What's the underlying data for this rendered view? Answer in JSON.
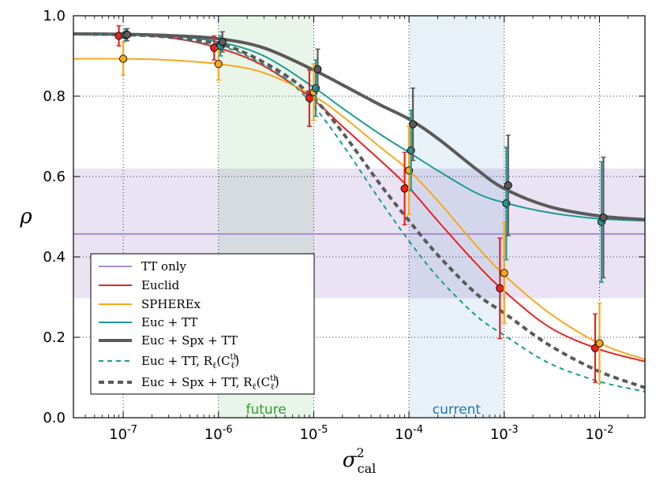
{
  "chart_data": {
    "type": "line",
    "xscale": "log",
    "xlim": [
      3e-08,
      0.03
    ],
    "ylim": [
      0.0,
      1.0
    ],
    "ylabel": "ρ",
    "xlabel_base": "σ",
    "xlabel_sup": "2",
    "xlabel_sub": "cal",
    "y_ticks": [
      "0.0",
      "0.2",
      "0.4",
      "0.6",
      "0.8",
      "1.0"
    ],
    "x_ticks": [
      {
        "base": "10",
        "exp": "-7",
        "value": 1e-07
      },
      {
        "base": "10",
        "exp": "-6",
        "value": 1e-06
      },
      {
        "base": "10",
        "exp": "-5",
        "value": 1e-05
      },
      {
        "base": "10",
        "exp": "-4",
        "value": 0.0001
      },
      {
        "base": "10",
        "exp": "-3",
        "value": 0.001
      },
      {
        "base": "10",
        "exp": "-2",
        "value": 0.01
      }
    ],
    "bands": [
      {
        "name": "future",
        "label": "future",
        "x": [
          1e-06,
          1e-05
        ],
        "color": "#2ca02c",
        "opacity": 0.1
      },
      {
        "name": "current",
        "label": "current",
        "x": [
          0.0001,
          0.001
        ],
        "color": "#1f77b4",
        "opacity": 0.1
      }
    ],
    "tt_only": {
      "value": 0.457,
      "band": [
        0.297,
        0.62
      ],
      "color": "#9b7fc7"
    },
    "series": [
      {
        "name": "TT only",
        "color": "#a98bd0",
        "style": "solid",
        "width": 2,
        "x": [
          3e-08,
          0.03
        ],
        "y": [
          0.457,
          0.457
        ]
      },
      {
        "name": "Euclid",
        "color": "#e8231f",
        "style": "solid",
        "width": 2,
        "x": [
          3e-08,
          1e-07,
          3e-07,
          1e-06,
          3e-06,
          1e-05,
          2e-05,
          5e-05,
          0.0001,
          0.0002,
          0.0005,
          0.001,
          0.003,
          0.01,
          0.03
        ],
        "y": [
          0.953,
          0.952,
          0.946,
          0.92,
          0.875,
          0.79,
          0.725,
          0.64,
          0.572,
          0.49,
          0.385,
          0.315,
          0.225,
          0.17,
          0.14
        ],
        "points": [
          [
            9e-08,
            0.95,
            0.025
          ],
          [
            9e-07,
            0.92,
            0.03
          ],
          [
            9e-06,
            0.795,
            0.07
          ],
          [
            9e-05,
            0.57,
            0.09
          ],
          [
            0.0009,
            0.322,
            0.125
          ],
          [
            0.009,
            0.173,
            0.085
          ]
        ]
      },
      {
        "name": "SPHEREx",
        "color": "#f9a71b",
        "style": "solid",
        "width": 2,
        "x": [
          3e-08,
          1e-07,
          3e-07,
          1e-06,
          3e-06,
          1e-05,
          2e-05,
          5e-05,
          0.0001,
          0.0002,
          0.0005,
          0.001,
          0.003,
          0.01,
          0.03
        ],
        "y": [
          0.893,
          0.893,
          0.89,
          0.88,
          0.858,
          0.8,
          0.75,
          0.673,
          0.615,
          0.54,
          0.43,
          0.355,
          0.26,
          0.185,
          0.145
        ],
        "points": [
          [
            1e-07,
            0.893,
            0.04
          ],
          [
            1e-06,
            0.88,
            0.04
          ],
          [
            1e-05,
            0.81,
            0.07
          ],
          [
            0.0001,
            0.615,
            0.11
          ],
          [
            0.001,
            0.36,
            0.125
          ],
          [
            0.01,
            0.185,
            0.1
          ]
        ]
      },
      {
        "name": "Euc + TT",
        "color": "#1d9a96",
        "style": "solid",
        "width": 2,
        "x": [
          3e-08,
          1e-07,
          3e-07,
          1e-06,
          3e-06,
          1e-05,
          2e-05,
          5e-05,
          0.0001,
          0.0002,
          0.0005,
          0.001,
          0.003,
          0.01,
          0.03
        ],
        "y": [
          0.955,
          0.954,
          0.95,
          0.935,
          0.9,
          0.822,
          0.77,
          0.705,
          0.66,
          0.615,
          0.56,
          0.535,
          0.51,
          0.495,
          0.49
        ],
        "points": [
          [
            1.05e-07,
            0.952,
            0.015
          ],
          [
            1.05e-06,
            0.925,
            0.025
          ],
          [
            1.05e-05,
            0.82,
            0.07
          ],
          [
            0.000105,
            0.665,
            0.1
          ],
          [
            0.00105,
            0.533,
            0.14
          ],
          [
            0.0105,
            0.487,
            0.15
          ]
        ]
      },
      {
        "name": "Euc + Spx + TT",
        "color": "#5a5a5a",
        "style": "solid",
        "width": 4,
        "x": [
          3e-08,
          1e-07,
          3e-07,
          1e-06,
          3e-06,
          1e-05,
          2e-05,
          5e-05,
          0.0001,
          0.0002,
          0.0005,
          0.001,
          0.003,
          0.01,
          0.03
        ],
        "y": [
          0.955,
          0.954,
          0.951,
          0.943,
          0.92,
          0.865,
          0.828,
          0.778,
          0.743,
          0.695,
          0.62,
          0.57,
          0.525,
          0.502,
          0.493
        ],
        "points": [
          [
            1.1e-07,
            0.953,
            0.015
          ],
          [
            1.1e-06,
            0.935,
            0.025
          ],
          [
            1.1e-05,
            0.867,
            0.05
          ],
          [
            0.00011,
            0.73,
            0.09
          ],
          [
            0.0011,
            0.578,
            0.125
          ],
          [
            0.011,
            0.498,
            0.15
          ]
        ]
      },
      {
        "name": "Euc + TT, R(C)",
        "color": "#1d9a96",
        "style": "dashed",
        "width": 2,
        "x": [
          3e-08,
          1e-07,
          3e-07,
          1e-06,
          2e-06,
          5e-06,
          1e-05,
          2e-05,
          5e-05,
          0.0001,
          0.0002,
          0.0005,
          0.001,
          0.003,
          0.01,
          0.03
        ],
        "y": [
          0.955,
          0.953,
          0.945,
          0.925,
          0.9,
          0.845,
          0.775,
          0.68,
          0.54,
          0.44,
          0.35,
          0.255,
          0.205,
          0.135,
          0.09,
          0.065
        ],
        "points": []
      },
      {
        "name": "Euc + Spx + TT, R(C)",
        "color": "#5a5a5a",
        "style": "dashed",
        "width": 4,
        "x": [
          3e-08,
          1e-07,
          3e-07,
          1e-06,
          2e-06,
          5e-06,
          1e-05,
          2e-05,
          5e-05,
          0.0001,
          0.0002,
          0.0005,
          0.001,
          0.003,
          0.01,
          0.03
        ],
        "y": [
          0.955,
          0.953,
          0.947,
          0.93,
          0.905,
          0.853,
          0.795,
          0.71,
          0.58,
          0.49,
          0.405,
          0.31,
          0.26,
          0.18,
          0.115,
          0.075
        ],
        "points": []
      }
    ],
    "legend": {
      "placement": "lower-left",
      "entries": [
        {
          "label": "TT only",
          "color": "#a98bd0",
          "style": "solid"
        },
        {
          "label": "Euclid",
          "color": "#e8231f",
          "style": "solid"
        },
        {
          "label": "SPHEREx",
          "color": "#f9a71b",
          "style": "solid"
        },
        {
          "label": "Euc + TT",
          "color": "#1d9a96",
          "style": "solid"
        },
        {
          "label": "Euc + Spx + TT",
          "color": "#5a5a5a",
          "style": "solid-thick"
        },
        {
          "label": "Euc + TT,  R",
          "label_sub": "ℓ",
          "label_tail": "(C",
          "label_sup": "th",
          "label_sub2": "ℓ",
          "label_end": ")",
          "color": "#1d9a96",
          "style": "dashed"
        },
        {
          "label": "Euc + Spx + TT,  R",
          "label_sub": "ℓ",
          "label_tail": "(C",
          "label_sup": "th",
          "label_sub2": "ℓ",
          "label_end": ")",
          "color": "#5a5a5a",
          "style": "dashed-thick"
        }
      ]
    }
  }
}
